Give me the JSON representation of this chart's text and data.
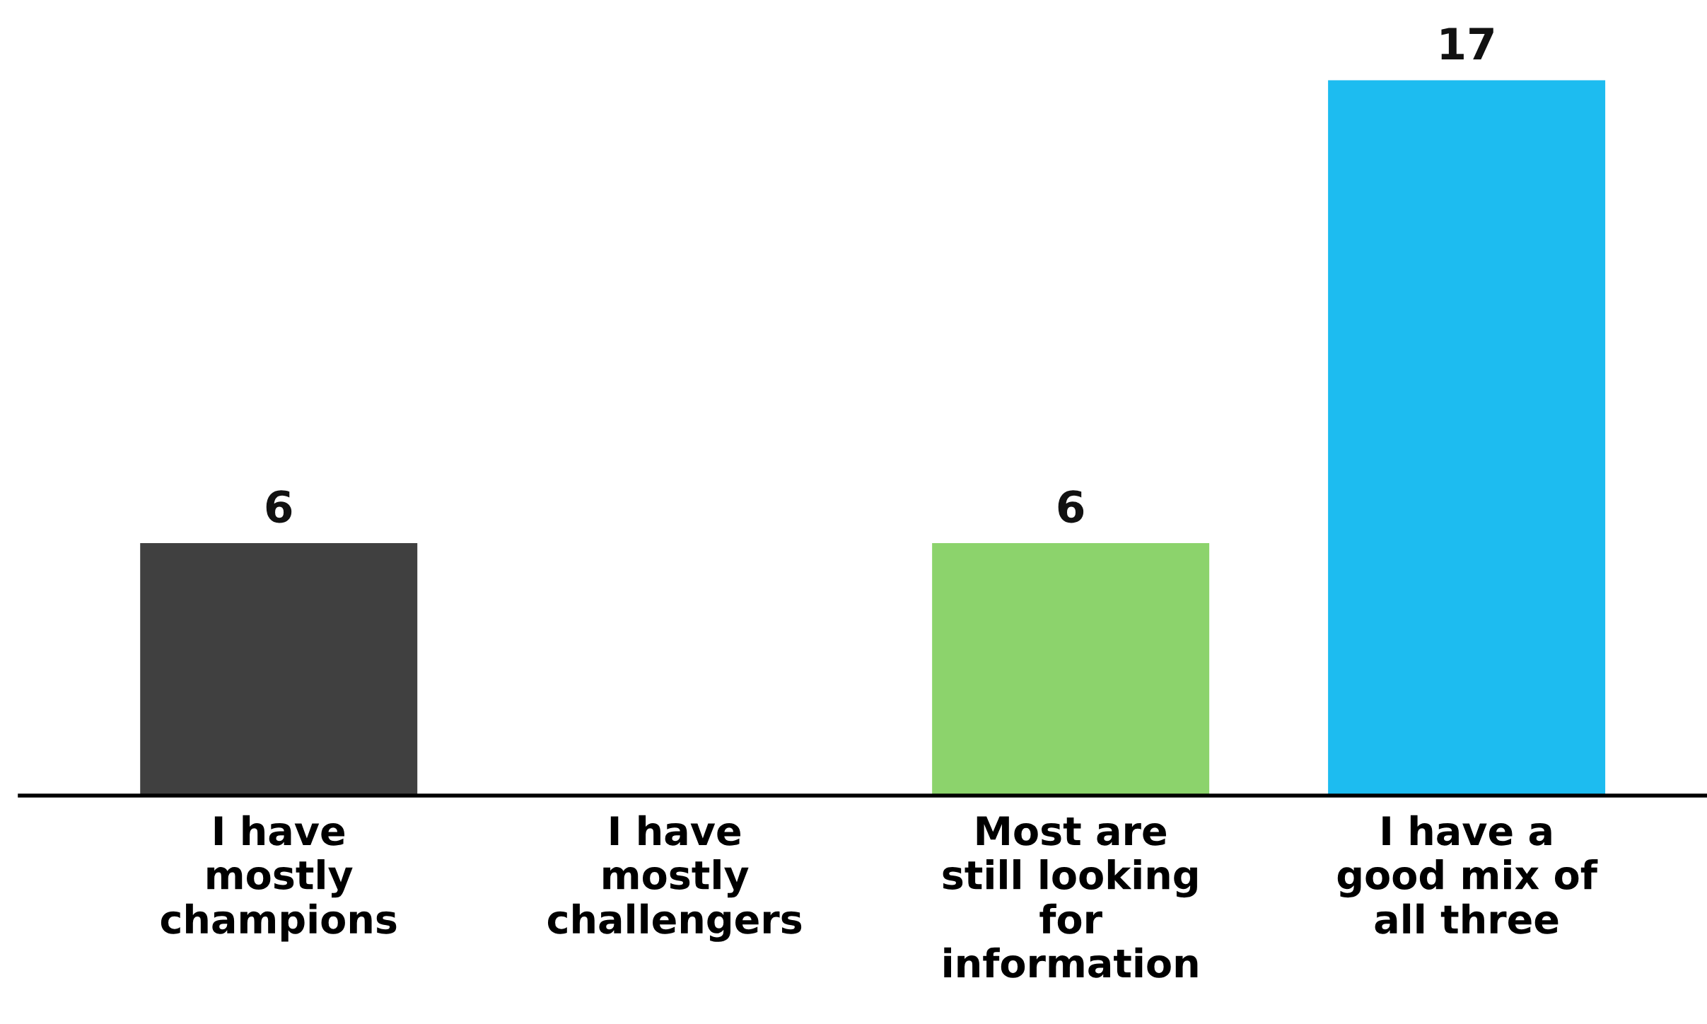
{
  "chart_data": {
    "type": "bar",
    "categories": [
      "I have\nmostly\nchampions",
      "I have\nmostly\nchallengers",
      "Most are\nstill looking\nfor\ninformation",
      "I have a\ngood mix of\nall three"
    ],
    "values": [
      6,
      0,
      6,
      17
    ],
    "colors": [
      "#404040",
      "#d9d9d9",
      "#8cd36c",
      "#1dbcf0"
    ],
    "value_labels": [
      "6",
      null,
      "6",
      "17"
    ],
    "tick_labels": "x",
    "grid": false,
    "legend": false
  }
}
